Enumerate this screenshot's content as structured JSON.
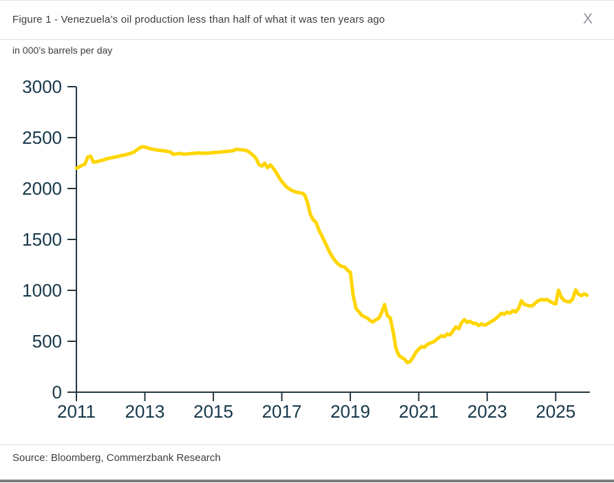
{
  "header": {
    "title": "Figure 1 - Venezuela’s oil production less than half of what it was ten years ago",
    "close_label": "X"
  },
  "subtitle": "in 000’s barrels per day",
  "source": "Source: Bloomberg, Commerzbank Research",
  "colors": {
    "line": "#FFD500",
    "axis": "#233742",
    "tick_label": "#17384A",
    "text": "#3C3C3C",
    "divider": "#DCDCDC",
    "bottom_bar": "#7E7E7E",
    "close": "#8F9398"
  },
  "chart_data": {
    "type": "line",
    "title": "Figure 1 - Venezuela’s oil production less than half of what it was ten years ago",
    "ylabel": "in 000’s barrels per day",
    "xlabel": "",
    "grid": false,
    "legend_position": "none",
    "xlim": [
      2011,
      2026
    ],
    "ylim": [
      0,
      3000
    ],
    "x_ticks": [
      2011,
      2013,
      2015,
      2017,
      2019,
      2021,
      2023,
      2025
    ],
    "y_ticks": [
      0,
      500,
      1000,
      1500,
      2000,
      2500,
      3000
    ],
    "series": [
      {
        "name": "Venezuela crude oil production, thousand barrels per day",
        "start_year": 2011.0,
        "step_years": 0.0833333,
        "values": [
          2200,
          2212,
          2228,
          2240,
          2310,
          2318,
          2258,
          2262,
          2270,
          2278,
          2286,
          2294,
          2300,
          2306,
          2312,
          2318,
          2324,
          2330,
          2338,
          2346,
          2355,
          2375,
          2395,
          2410,
          2408,
          2398,
          2390,
          2385,
          2380,
          2375,
          2372,
          2368,
          2365,
          2358,
          2335,
          2340,
          2345,
          2340,
          2338,
          2340,
          2343,
          2345,
          2347,
          2350,
          2348,
          2345,
          2347,
          2350,
          2353,
          2355,
          2357,
          2360,
          2362,
          2365,
          2368,
          2372,
          2385,
          2383,
          2380,
          2378,
          2368,
          2348,
          2325,
          2295,
          2235,
          2220,
          2248,
          2205,
          2232,
          2200,
          2158,
          2110,
          2068,
          2035,
          2008,
          1990,
          1975,
          1965,
          1960,
          1955,
          1938,
          1862,
          1748,
          1692,
          1668,
          1592,
          1538,
          1480,
          1420,
          1362,
          1318,
          1280,
          1252,
          1236,
          1230,
          1198,
          1178,
          955,
          822,
          790,
          756,
          740,
          728,
          702,
          690,
          712,
          726,
          782,
          860,
          752,
          730,
          600,
          430,
          362,
          340,
          325,
          290,
          302,
          342,
          392,
          422,
          448,
          440,
          470,
          482,
          492,
          512,
          535,
          555,
          545,
          572,
          562,
          602,
          642,
          622,
          682,
          712,
          686,
          696,
          676,
          676,
          655,
          672,
          658,
          668,
          688,
          702,
          722,
          748,
          775,
          765,
          786,
          776,
          800,
          788,
          822,
          898,
          862,
          855,
          845,
          852,
          880,
          900,
          910,
          905,
          910,
          892,
          876,
          866,
          1002,
          932,
          900,
          890,
          888,
          916,
          1005,
          962,
          948,
          965,
          952
        ]
      }
    ]
  }
}
